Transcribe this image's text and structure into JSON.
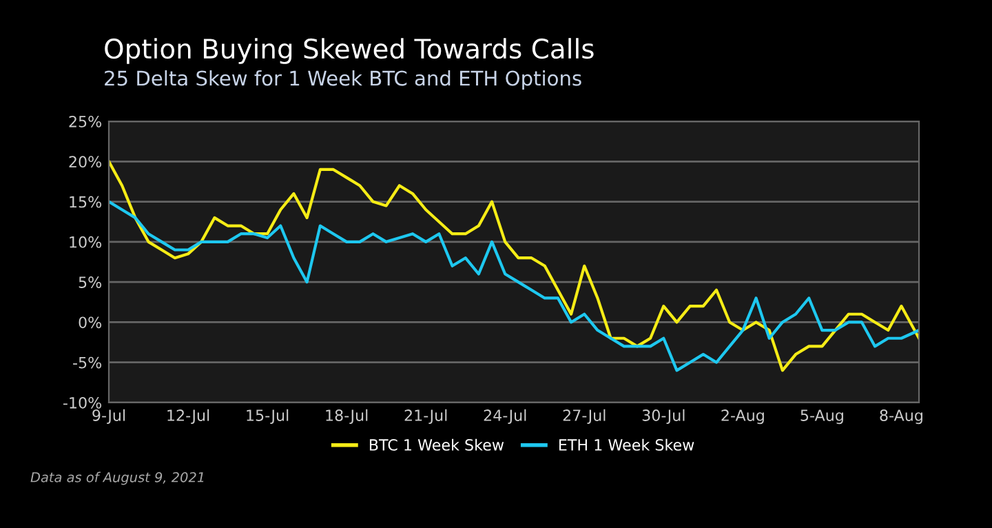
{
  "chart_data": {
    "type": "line",
    "title": "Option Buying Skewed Towards Calls",
    "subtitle": "25 Delta Skew for 1 Week BTC and ETH Options",
    "annotations": [
      "Data as of August 9, 2021"
    ],
    "x": [
      "2021-07-09T00:00",
      "2021-07-09T12:00",
      "2021-07-10T00:00",
      "2021-07-10T12:00",
      "2021-07-11T00:00",
      "2021-07-11T12:00",
      "2021-07-12T00:00",
      "2021-07-12T12:00",
      "2021-07-13T00:00",
      "2021-07-13T12:00",
      "2021-07-14T00:00",
      "2021-07-14T12:00",
      "2021-07-15T00:00",
      "2021-07-15T12:00",
      "2021-07-16T00:00",
      "2021-07-16T12:00",
      "2021-07-17T00:00",
      "2021-07-17T12:00",
      "2021-07-18T00:00",
      "2021-07-18T12:00",
      "2021-07-19T00:00",
      "2021-07-19T12:00",
      "2021-07-20T00:00",
      "2021-07-20T12:00",
      "2021-07-21T00:00",
      "2021-07-21T12:00",
      "2021-07-22T00:00",
      "2021-07-22T12:00",
      "2021-07-23T00:00",
      "2021-07-23T12:00",
      "2021-07-24T00:00",
      "2021-07-24T12:00",
      "2021-07-25T00:00",
      "2021-07-25T12:00",
      "2021-07-26T00:00",
      "2021-07-26T12:00",
      "2021-07-27T00:00",
      "2021-07-27T12:00",
      "2021-07-28T00:00",
      "2021-07-28T12:00",
      "2021-07-29T00:00",
      "2021-07-29T12:00",
      "2021-07-30T00:00",
      "2021-07-30T12:00",
      "2021-07-31T00:00",
      "2021-07-31T12:00",
      "2021-08-01T00:00",
      "2021-08-01T12:00",
      "2021-08-02T00:00",
      "2021-08-02T12:00",
      "2021-08-03T00:00",
      "2021-08-03T12:00",
      "2021-08-04T00:00",
      "2021-08-04T12:00",
      "2021-08-05T00:00",
      "2021-08-05T12:00",
      "2021-08-06T00:00",
      "2021-08-06T12:00",
      "2021-08-07T00:00",
      "2021-08-07T12:00",
      "2021-08-08T00:00",
      "2021-08-08T16:00"
    ],
    "series": [
      {
        "name": "BTC 1 Week Skew",
        "color": "#f5ec16",
        "values": [
          20,
          17,
          13,
          10,
          9,
          8,
          8.5,
          10,
          13,
          12,
          12,
          11,
          11,
          14,
          16,
          13,
          19,
          19,
          18,
          17,
          15,
          14.5,
          17,
          16,
          14,
          12.5,
          11,
          11,
          12,
          15,
          10,
          8,
          8,
          7,
          4,
          1,
          7,
          3,
          -2,
          -2,
          -3,
          -2,
          2,
          0,
          2,
          2,
          4,
          0,
          -1,
          0,
          -1,
          -6,
          -4,
          -3,
          -3,
          -1,
          1,
          1,
          0,
          -1,
          2,
          -2
        ]
      },
      {
        "name": "ETH 1 Week Skew",
        "color": "#1ec8f0",
        "values": [
          15,
          14,
          13,
          11,
          10,
          9,
          9,
          10,
          10,
          10,
          11,
          11,
          10.5,
          12,
          8,
          5,
          12,
          11,
          10,
          10,
          11,
          10,
          10.5,
          11,
          10,
          11,
          7,
          8,
          6,
          10,
          6,
          5,
          4,
          3,
          3,
          0,
          1,
          -1,
          -2,
          -3,
          -3,
          -3,
          -2,
          -6,
          -5,
          -4,
          -5,
          -3,
          -1,
          3,
          -2,
          0,
          1,
          3,
          -1,
          -1,
          0,
          0,
          -3,
          -2,
          -2,
          -1
        ]
      }
    ],
    "xlim": [
      "2021-07-09T00:00",
      "2021-08-08T16:00"
    ],
    "xticks": [
      {
        "value": "2021-07-09",
        "label": "9-Jul"
      },
      {
        "value": "2021-07-12",
        "label": "12-Jul"
      },
      {
        "value": "2021-07-15",
        "label": "15-Jul"
      },
      {
        "value": "2021-07-18",
        "label": "18-Jul"
      },
      {
        "value": "2021-07-21",
        "label": "21-Jul"
      },
      {
        "value": "2021-07-24",
        "label": "24-Jul"
      },
      {
        "value": "2021-07-27",
        "label": "27-Jul"
      },
      {
        "value": "2021-07-30",
        "label": "30-Jul"
      },
      {
        "value": "2021-08-02",
        "label": "2-Aug"
      },
      {
        "value": "2021-08-05",
        "label": "5-Aug"
      },
      {
        "value": "2021-08-08",
        "label": "8-Aug"
      }
    ],
    "ylim": [
      -10,
      25
    ],
    "yticks": [
      {
        "value": -10,
        "label": "-10%"
      },
      {
        "value": -5,
        "label": "-5%"
      },
      {
        "value": 0,
        "label": "0%"
      },
      {
        "value": 5,
        "label": "5%"
      },
      {
        "value": 10,
        "label": "10%"
      },
      {
        "value": 15,
        "label": "15%"
      },
      {
        "value": 20,
        "label": "20%"
      },
      {
        "value": 25,
        "label": "25%"
      }
    ],
    "grid": "y",
    "legend": "bottom"
  }
}
